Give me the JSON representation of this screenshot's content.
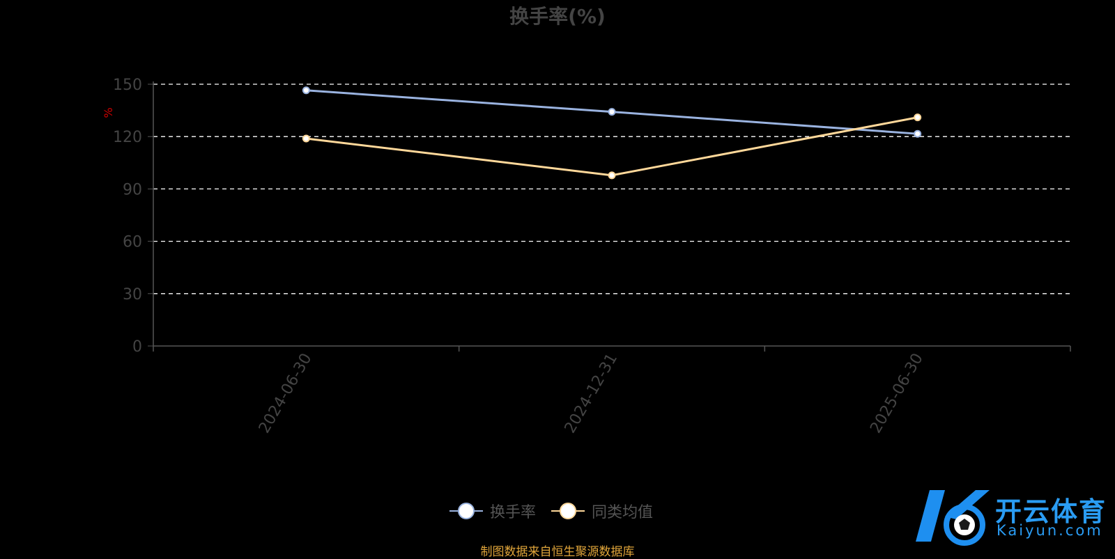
{
  "chart_data": {
    "type": "line",
    "title": "换手率(%)",
    "ylabel": "%",
    "xlabel": "",
    "categories": [
      "2024-06-30",
      "2024-12-31",
      "2025-06-30"
    ],
    "yticks": [
      "0",
      "30",
      "60",
      "90",
      "120",
      "150"
    ],
    "ylim": [
      0,
      150
    ],
    "grid": true,
    "legend_position": "bottom",
    "series": [
      {
        "name": "换手率",
        "values": [
          146.5,
          134.2,
          121.6
        ],
        "color": "#9ab3e0"
      },
      {
        "name": "同类均值",
        "values": [
          118.9,
          97.8,
          131.0
        ],
        "color": "#ffd89a"
      }
    ]
  },
  "footnote": "制图数据来自恒生聚源数据库",
  "watermark": {
    "cn": "开云体育",
    "en": "Kaiyun.com"
  }
}
